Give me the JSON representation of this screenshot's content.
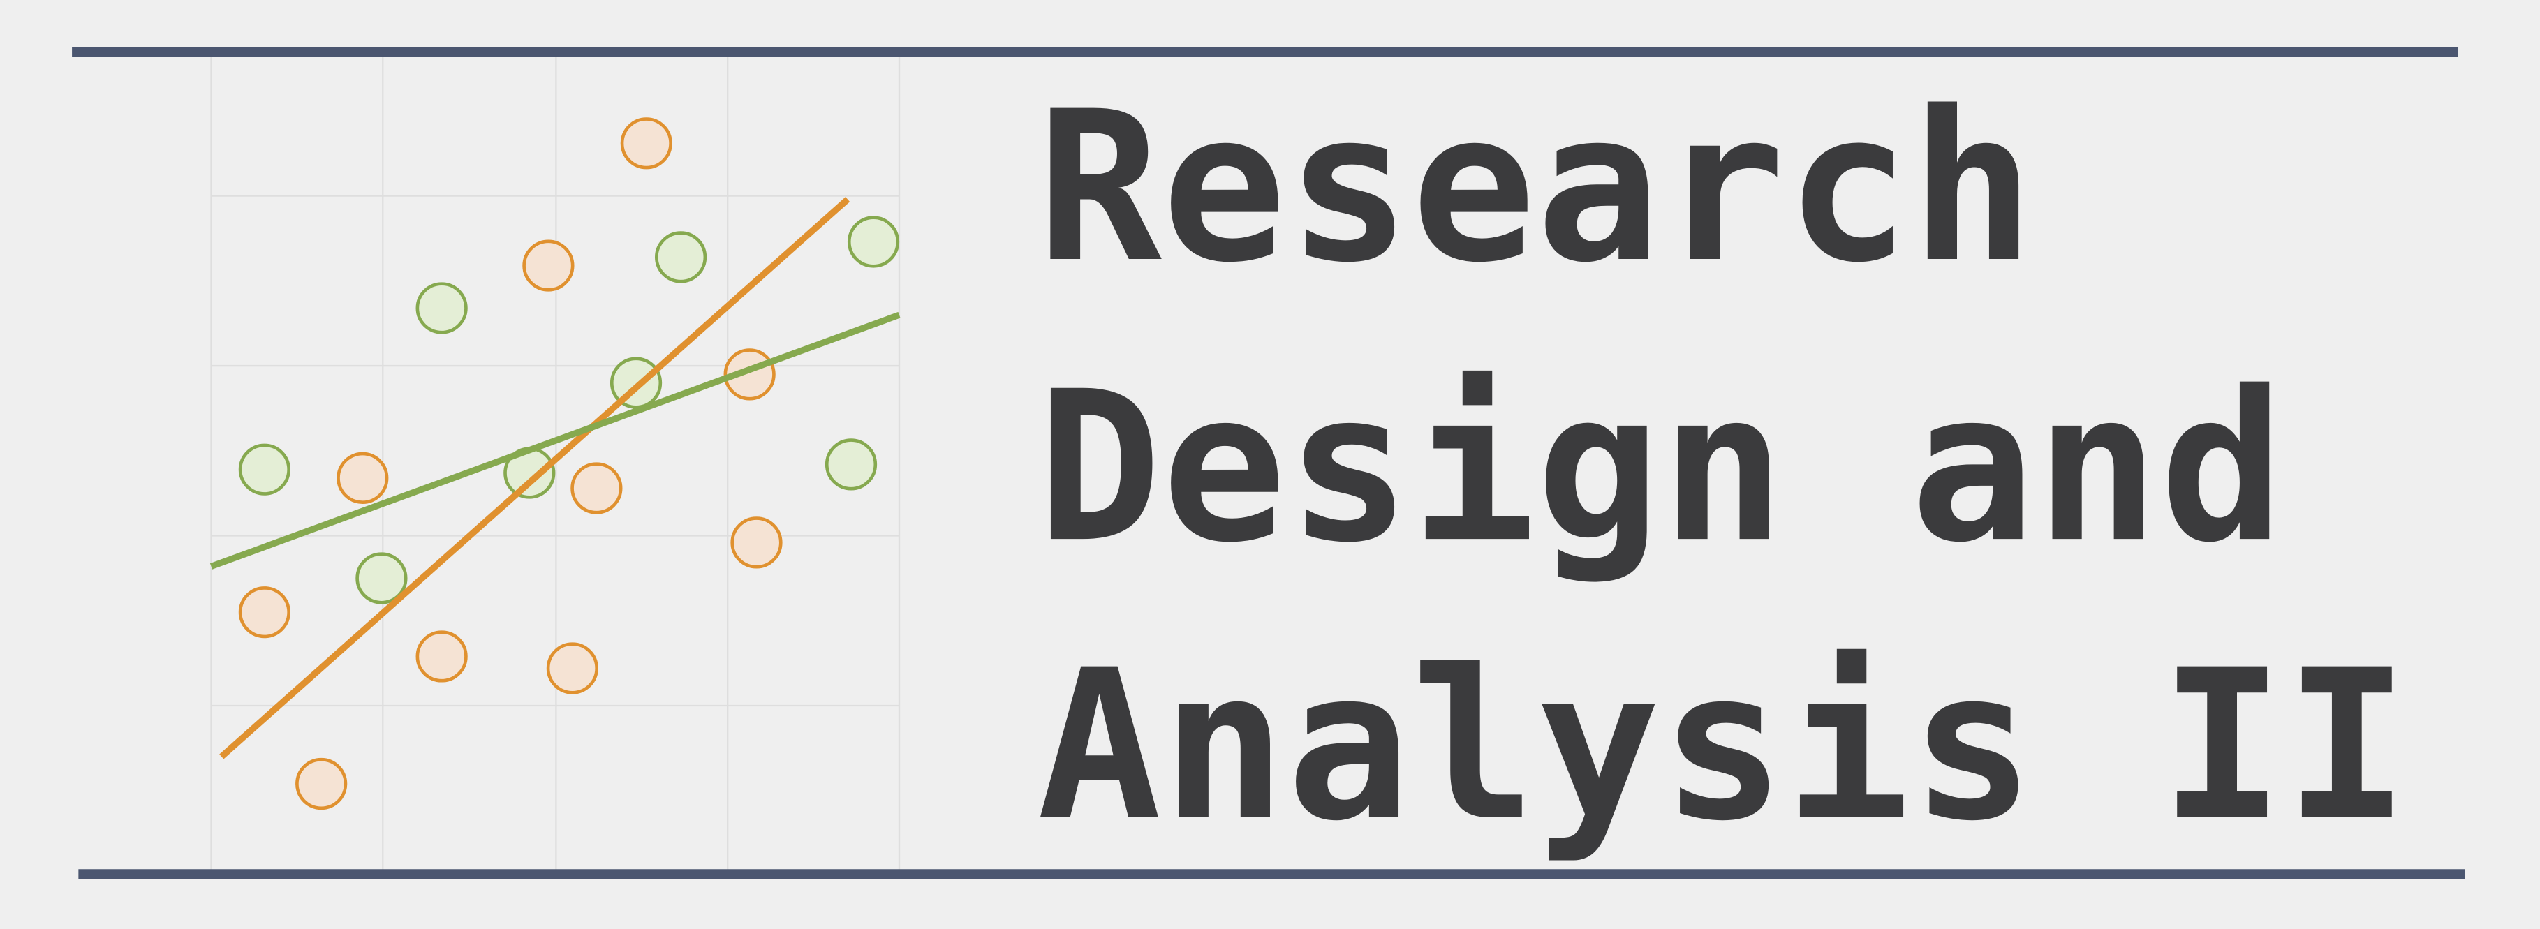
{
  "title_lines": [
    "Research",
    "Design and",
    "Analysis II"
  ],
  "chart_data": {
    "type": "scatter",
    "xlim": [
      0,
      4
    ],
    "ylim": [
      0,
      4.82
    ],
    "grid": true,
    "series": [
      {
        "color": "#e0912f",
        "fill": "#f5e3d4",
        "x": [
          2.53,
          1.96,
          3.13,
          0.88,
          2.24,
          3.17,
          0.31,
          1.34,
          2.1,
          0.64
        ],
        "y": [
          4.31,
          3.59,
          2.95,
          2.34,
          2.28,
          1.96,
          1.55,
          1.29,
          1.22,
          0.54
        ]
      },
      {
        "color": "#86a94f",
        "fill": "#e4eed6",
        "x": [
          3.85,
          2.73,
          1.34,
          2.47,
          0.31,
          1.85,
          3.72,
          0.99
        ],
        "y": [
          3.73,
          3.64,
          3.34,
          2.9,
          2.39,
          2.37,
          2.42,
          1.75
        ]
      }
    ],
    "lines": [
      {
        "color": "#e0912f",
        "x": [
          0.06,
          3.7
        ],
        "y": [
          0.7,
          3.98
        ]
      },
      {
        "color": "#86a94f",
        "x": [
          0,
          4
        ],
        "y": [
          1.82,
          3.3
        ]
      }
    ]
  }
}
